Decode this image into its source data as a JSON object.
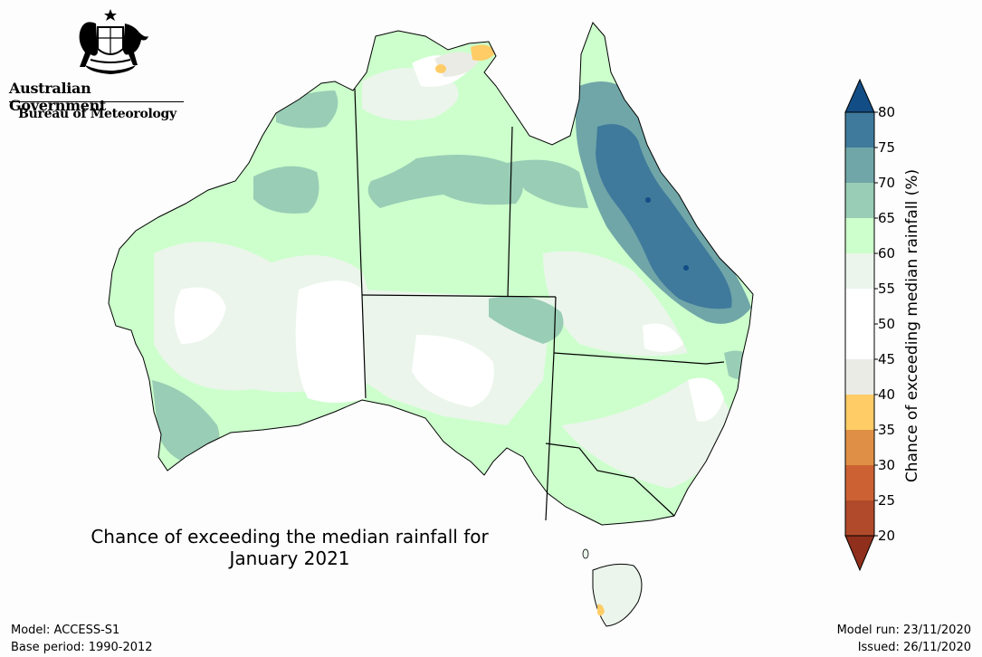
{
  "branding": {
    "government": "Australian Government",
    "bureau": "Bureau of Meteorology",
    "logo_icon": "commonwealth-coat-of-arms-icon"
  },
  "map": {
    "title_line1": "Chance of exceeding the median rainfall for",
    "title_line2": "January 2021"
  },
  "colorbar": {
    "title": "Chance of exceeding median rainfall (%)",
    "ticks": [
      "20",
      "25",
      "30",
      "35",
      "40",
      "45",
      "50",
      "55",
      "60",
      "65",
      "70",
      "75",
      "80"
    ],
    "colors": {
      "below_20": "#8f2f1c",
      "20_25": "#b04a2a",
      "25_30": "#cc6233",
      "30_35": "#df9046",
      "35_40": "#ffcc66",
      "40_45": "#ebebe6",
      "45_50": "#ffffff",
      "50_55": "#ffffff",
      "55_60": "#ebf5eb",
      "60_65": "#ccffcc",
      "65_70": "#99cdb5",
      "70_75": "#70a6a8",
      "75_80": "#3f7a9c",
      "above_80": "#134d85"
    }
  },
  "footer": {
    "model": "Model: ACCESS-S1",
    "base_period": "Base period: 1990-2012",
    "model_run": "Model run: 23/11/2020",
    "issued": "Issued: 26/11/2020"
  }
}
